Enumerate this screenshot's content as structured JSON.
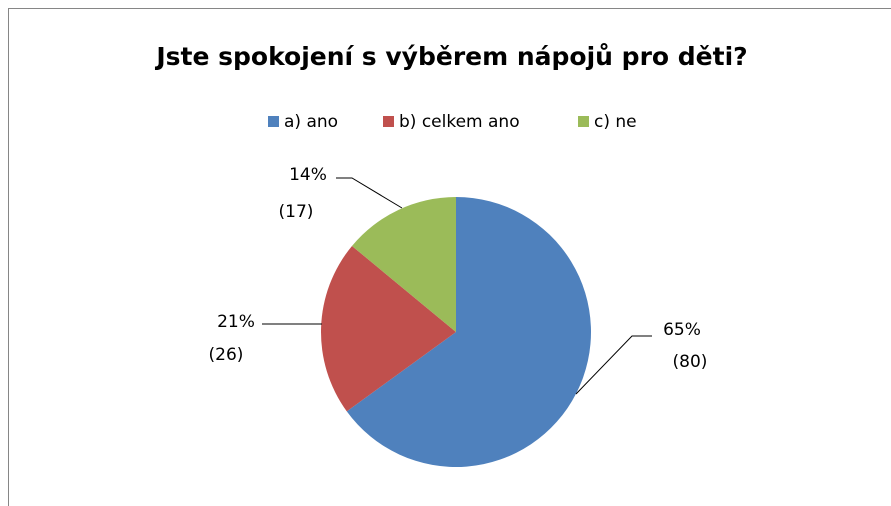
{
  "chart_data": {
    "type": "pie",
    "title": "Jste spokojení s výběrem nápojů pro děti?",
    "categories": [
      "a) ano",
      "b) celkem ano",
      "c) ne"
    ],
    "values": [
      65,
      21,
      14
    ],
    "value_labels": [
      "65%",
      "21%",
      "14%"
    ],
    "count_labels": [
      "(80)",
      "(26)",
      "(17)"
    ],
    "colors": [
      "#4f81bd",
      "#c0504d",
      "#9bbb59"
    ],
    "legend": "top"
  }
}
